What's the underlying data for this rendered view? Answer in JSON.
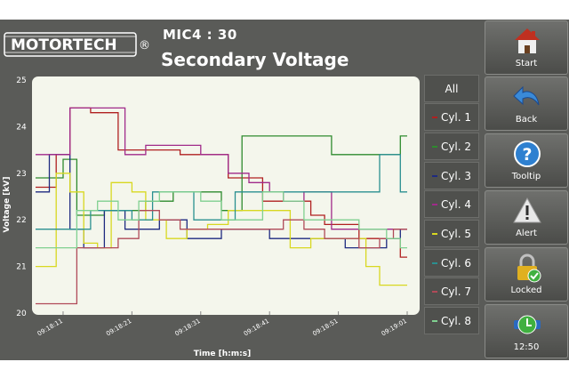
{
  "brand": {
    "name": "MOTORTECH",
    "registered": "®"
  },
  "header": {
    "device": "MIC4 : 30",
    "title": "Secondary Voltage"
  },
  "series_buttons": [
    {
      "label": "All",
      "color": ""
    },
    {
      "label": "Cyl. 1",
      "color": "#b02020"
    },
    {
      "label": "Cyl. 2",
      "color": "#2e8b2e"
    },
    {
      "label": "Cyl. 3",
      "color": "#1e2a80"
    },
    {
      "label": "Cyl. 4",
      "color": "#a02a8a"
    },
    {
      "label": "Cyl. 5",
      "color": "#d8d820"
    },
    {
      "label": "Cyl. 6",
      "color": "#2a9090"
    },
    {
      "label": "Cyl. 7",
      "color": "#b04a58"
    },
    {
      "label": "Cyl. 8",
      "color": "#80d090"
    }
  ],
  "nav": {
    "start": "Start",
    "back": "Back",
    "tooltip": "Tooltip",
    "alert": "Alert",
    "locked": "Locked",
    "clock": "12:50"
  },
  "chart_data": {
    "type": "line",
    "title": "",
    "xlabel": "Time [h:m:s]",
    "ylabel": "Voltage [kV]",
    "ylim": [
      20,
      25
    ],
    "yticks": [
      "20",
      "21",
      "22",
      "23",
      "24",
      "25"
    ],
    "xlim": [
      0,
      54
    ],
    "xticks": [
      {
        "t": 4,
        "label": "09:18:11"
      },
      {
        "t": 14,
        "label": "09:18:21"
      },
      {
        "t": 24,
        "label": "09:18:31"
      },
      {
        "t": 34,
        "label": "09:18:41"
      },
      {
        "t": 44,
        "label": "09:18:51"
      },
      {
        "t": 54,
        "label": "09:19:01"
      }
    ],
    "series": [
      {
        "name": "Cyl. 1",
        "color": "#b02020",
        "x": [
          0,
          3,
          5,
          8,
          12,
          15,
          19,
          21,
          28,
          33,
          37,
          40,
          42,
          47,
          50,
          53,
          54
        ],
        "y": [
          22.7,
          23.4,
          24.4,
          24.3,
          23.5,
          23.5,
          23.5,
          23.4,
          22.9,
          22.4,
          22.4,
          22.1,
          21.9,
          21.6,
          21.6,
          21.2,
          21.2
        ]
      },
      {
        "name": "Cyl. 2",
        "color": "#2e8b2e",
        "x": [
          0,
          4,
          6,
          10,
          13,
          16,
          20,
          24,
          27,
          30,
          33,
          36,
          40,
          43,
          47,
          50,
          52,
          53,
          54
        ],
        "y": [
          22.9,
          23.3,
          22.1,
          22.2,
          22.2,
          22.4,
          22.6,
          22.6,
          22.2,
          23.8,
          23.8,
          23.8,
          23.8,
          23.4,
          23.4,
          23.4,
          23.4,
          23.8,
          23.8
        ]
      },
      {
        "name": "Cyl. 3",
        "color": "#1e2a80",
        "x": [
          0,
          2,
          5,
          7,
          10,
          13,
          15,
          18,
          20,
          22,
          24,
          27,
          30,
          34,
          37,
          40,
          43,
          45,
          48,
          51,
          53,
          54
        ],
        "y": [
          22.6,
          23.4,
          21.8,
          21.4,
          22.2,
          21.8,
          21.8,
          22.0,
          22.0,
          21.6,
          21.6,
          21.8,
          21.8,
          21.6,
          21.6,
          21.6,
          21.6,
          21.4,
          21.4,
          21.6,
          21.8,
          21.8
        ]
      },
      {
        "name": "Cyl. 4",
        "color": "#a02a8a",
        "x": [
          0,
          3,
          5,
          9,
          13,
          16,
          20,
          24,
          28,
          31,
          34,
          36,
          39,
          43,
          46,
          49,
          52,
          54
        ],
        "y": [
          23.4,
          23.4,
          24.4,
          24.4,
          23.4,
          23.6,
          23.6,
          23.4,
          23.0,
          22.8,
          22.6,
          22.4,
          22.6,
          21.8,
          21.8,
          21.8,
          21.8,
          21.8
        ]
      },
      {
        "name": "Cyl. 5",
        "color": "#d8d820",
        "x": [
          0,
          2,
          3,
          5,
          7,
          9,
          11,
          14,
          16,
          19,
          22,
          25,
          28,
          31,
          34,
          37,
          40,
          43,
          45,
          48,
          50,
          52,
          54
        ],
        "y": [
          21.0,
          21.0,
          23.0,
          22.6,
          21.5,
          21.4,
          22.8,
          22.6,
          22.0,
          21.6,
          21.8,
          21.9,
          22.2,
          22.2,
          22.2,
          21.4,
          21.6,
          21.6,
          21.6,
          21.0,
          20.6,
          20.6,
          20.6
        ]
      },
      {
        "name": "Cyl. 6",
        "color": "#2a9090",
        "x": [
          0,
          3,
          5,
          8,
          11,
          14,
          17,
          20,
          23,
          26,
          29,
          32,
          35,
          38,
          41,
          44,
          47,
          50,
          52,
          53,
          54
        ],
        "y": [
          21.8,
          21.8,
          21.8,
          22.2,
          22.2,
          22.0,
          22.6,
          22.6,
          22.0,
          22.0,
          22.6,
          22.6,
          22.6,
          22.6,
          22.6,
          22.6,
          22.6,
          23.4,
          23.4,
          22.6,
          22.6
        ]
      },
      {
        "name": "Cyl. 7",
        "color": "#b04a58",
        "x": [
          0,
          2,
          4,
          6,
          9,
          12,
          15,
          18,
          21,
          24,
          27,
          30,
          33,
          36,
          39,
          42,
          44,
          47,
          50,
          52,
          54
        ],
        "y": [
          20.2,
          20.2,
          20.2,
          21.4,
          21.4,
          21.6,
          22.2,
          22.0,
          21.8,
          21.8,
          21.8,
          21.8,
          21.8,
          22.0,
          21.8,
          21.6,
          21.6,
          21.4,
          21.6,
          21.8,
          21.8
        ]
      },
      {
        "name": "Cyl. 8",
        "color": "#80d090",
        "x": [
          0,
          3,
          6,
          9,
          12,
          15,
          18,
          21,
          24,
          27,
          30,
          33,
          36,
          39,
          42,
          45,
          47,
          49,
          51,
          53,
          54
        ],
        "y": [
          21.4,
          21.4,
          22.2,
          22.4,
          22.0,
          22.4,
          22.6,
          22.6,
          22.4,
          22.0,
          22.0,
          22.6,
          22.4,
          22.0,
          22.0,
          22.0,
          21.8,
          21.8,
          21.6,
          21.4,
          21.4
        ]
      }
    ]
  }
}
